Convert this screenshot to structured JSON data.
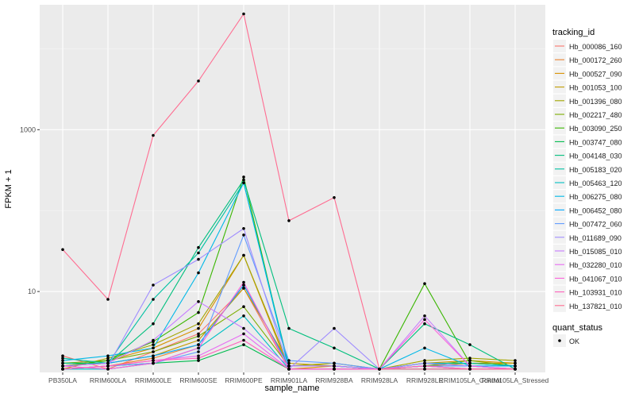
{
  "chart_data": {
    "type": "line",
    "xlabel": "sample_name",
    "ylabel": "FPKM + 1",
    "y_scale": "log10",
    "ylim": [
      1,
      35000
    ],
    "y_ticks": [
      10,
      1000
    ],
    "grid": true,
    "legend_placement": "right",
    "categories": [
      "PB350LA",
      "RRIM600LA",
      "RRIM600LE",
      "RRIM600SE",
      "RRIM600PE",
      "RRIM901LA",
      "RRIM928BA",
      "RRIM928LA",
      "RRIM928LE",
      "RRIM105LA_Control",
      "RRIM105LA_Stressed"
    ],
    "legend": {
      "title": "tracking_id",
      "quant_title": "quant_status",
      "quant_label": "OK"
    },
    "series": [
      {
        "name": "Hb_000086_160",
        "color": "#F8766D",
        "values": [
          1.6,
          1.1,
          1.8,
          3.0,
          11,
          1.1,
          1.1,
          1.1,
          1.1,
          1.1,
          1.1
        ]
      },
      {
        "name": "Hb_000172_260",
        "color": "#EA8331",
        "values": [
          1.1,
          1.2,
          1.5,
          2.2,
          12,
          1.2,
          1.2,
          1.1,
          1.2,
          1.2,
          1.1
        ]
      },
      {
        "name": "Hb_000527_090",
        "color": "#D89000",
        "values": [
          1.2,
          1.4,
          2.0,
          3.5,
          28,
          1.1,
          1.2,
          1.1,
          1.3,
          1.4,
          1.3
        ]
      },
      {
        "name": "Hb_001053_100",
        "color": "#C09B00",
        "values": [
          1.2,
          1.3,
          1.6,
          2.5,
          11,
          1.3,
          1.2,
          1.1,
          1.2,
          1.3,
          1.3
        ]
      },
      {
        "name": "Hb_001396_080",
        "color": "#A3A500",
        "values": [
          1.1,
          1.5,
          2.2,
          4.0,
          28,
          1.2,
          1.3,
          1.1,
          1.4,
          1.5,
          1.4
        ]
      },
      {
        "name": "Hb_002217_480",
        "color": "#7CAE00",
        "values": [
          1.3,
          1.4,
          1.8,
          2.8,
          6.5,
          1.2,
          1.2,
          1.1,
          1.2,
          1.4,
          1.2
        ]
      },
      {
        "name": "Hb_003090_250",
        "color": "#39B600",
        "values": [
          1.2,
          1.4,
          2.4,
          5.5,
          260,
          1.1,
          1.1,
          1.1,
          12.5,
          1.3,
          1.2
        ]
      },
      {
        "name": "Hb_003747_080",
        "color": "#00BB4E",
        "values": [
          1.1,
          1.2,
          1.3,
          1.4,
          2.2,
          1.1,
          1.1,
          1.1,
          1.2,
          1.1,
          1.1
        ]
      },
      {
        "name": "Hb_004148_030",
        "color": "#00BF7D",
        "values": [
          1.3,
          1.3,
          4.0,
          35,
          240,
          3.5,
          2.0,
          1.1,
          4.0,
          2.2,
          1.1
        ]
      },
      {
        "name": "Hb_005183_020",
        "color": "#00C1A3",
        "values": [
          1.5,
          1.3,
          8.0,
          30,
          220,
          1.2,
          1.2,
          1.1,
          1.3,
          1.3,
          1.2
        ]
      },
      {
        "name": "Hb_005463_120",
        "color": "#00BFC4",
        "values": [
          1.1,
          1.1,
          1.3,
          2.0,
          5.0,
          1.1,
          1.1,
          1.1,
          1.1,
          1.1,
          1.1
        ]
      },
      {
        "name": "Hb_006275_080",
        "color": "#00B8E7",
        "values": [
          1.4,
          1.6,
          2.0,
          17,
          220,
          1.1,
          1.1,
          1.1,
          2.0,
          1.2,
          1.2
        ]
      },
      {
        "name": "Hb_006452_080",
        "color": "#00A9FF",
        "values": [
          1.2,
          1.3,
          1.6,
          2.2,
          12,
          1.2,
          1.2,
          1.1,
          1.3,
          1.2,
          1.2
        ]
      },
      {
        "name": "Hb_007472_060",
        "color": "#619CFF",
        "values": [
          1.1,
          1.2,
          1.3,
          1.8,
          50,
          1.4,
          1.3,
          1.1,
          1.2,
          1.2,
          1.1
        ]
      },
      {
        "name": "Hb_011689_090",
        "color": "#9F8CFF",
        "values": [
          1.1,
          1.2,
          12,
          25,
          60,
          1.1,
          3.5,
          1.1,
          1.3,
          1.2,
          1.1
        ]
      },
      {
        "name": "Hb_015085_010",
        "color": "#C77CFF",
        "values": [
          1.2,
          1.3,
          2.5,
          7.5,
          3.5,
          1.2,
          1.2,
          1.1,
          5.0,
          1.2,
          1.1
        ]
      },
      {
        "name": "Hb_032280_010",
        "color": "#E76BF3",
        "values": [
          1.1,
          1.2,
          1.4,
          1.6,
          3.0,
          1.1,
          1.1,
          1.1,
          1.2,
          1.1,
          1.1
        ]
      },
      {
        "name": "Hb_041067_010",
        "color": "#FA62DB",
        "values": [
          1.2,
          1.1,
          1.3,
          2.0,
          13,
          1.1,
          1.1,
          1.1,
          4.5,
          1.2,
          1.1
        ]
      },
      {
        "name": "Hb_103931_010",
        "color": "#FF62BC",
        "values": [
          1.1,
          1.2,
          1.4,
          1.5,
          2.5,
          1.1,
          1.1,
          1.1,
          1.2,
          1.1,
          1.1
        ]
      },
      {
        "name": "Hb_137821_010",
        "color": "#FF6C91",
        "values": [
          33,
          8,
          850,
          4000,
          27000,
          75,
          145,
          1.1,
          1.1,
          1.1,
          1.1
        ]
      }
    ]
  }
}
